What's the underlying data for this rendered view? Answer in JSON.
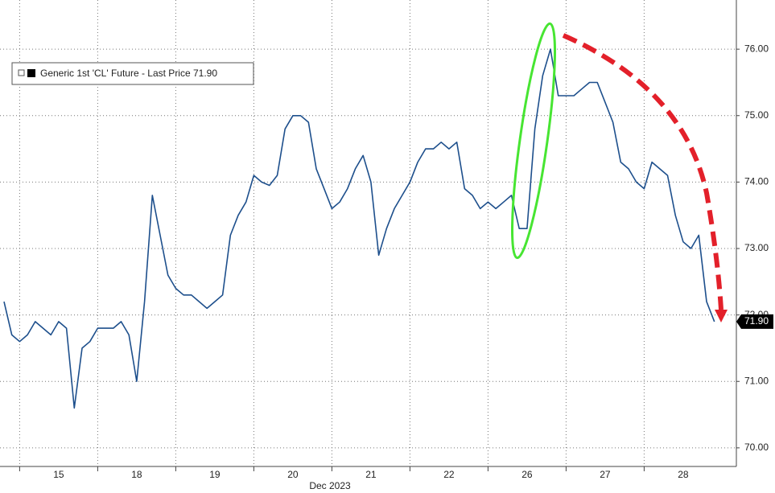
{
  "chart_data": {
    "type": "line",
    "xlabel": "Dec 2023",
    "categories": [
      null,
      null,
      null,
      null,
      null,
      null,
      null,
      "15",
      null,
      null,
      null,
      null,
      null,
      null,
      null,
      null,
      null,
      "18",
      null,
      null,
      null,
      null,
      null,
      null,
      null,
      null,
      null,
      "19",
      null,
      null,
      null,
      null,
      null,
      null,
      null,
      null,
      null,
      "20",
      null,
      null,
      null,
      null,
      null,
      null,
      null,
      null,
      null,
      "21",
      null,
      null,
      null,
      null,
      null,
      null,
      null,
      null,
      null,
      "22",
      null,
      null,
      null,
      null,
      null,
      null,
      null,
      null,
      null,
      "26",
      null,
      null,
      null,
      null,
      null,
      null,
      null,
      null,
      null,
      "27",
      null,
      null,
      null,
      null,
      null,
      null,
      null,
      null,
      null,
      "28",
      null,
      null,
      null,
      null
    ],
    "series": [
      {
        "name": "Generic 1st 'CL' Future - Last Price 71.90",
        "color": "#1d4f8c",
        "values": [
          72.2,
          71.7,
          71.6,
          71.7,
          71.9,
          71.8,
          71.7,
          71.9,
          71.8,
          70.6,
          71.5,
          71.6,
          71.8,
          71.8,
          71.8,
          71.9,
          71.7,
          71.0,
          72.2,
          73.8,
          73.2,
          72.6,
          72.4,
          72.3,
          72.3,
          72.2,
          72.1,
          72.2,
          72.3,
          73.2,
          73.5,
          73.7,
          74.1,
          74.0,
          73.95,
          74.1,
          74.8,
          75.0,
          75.0,
          74.9,
          74.2,
          73.9,
          73.6,
          73.7,
          73.9,
          74.2,
          74.4,
          74.0,
          72.9,
          73.3,
          73.6,
          73.8,
          74.0,
          74.3,
          74.5,
          74.5,
          74.6,
          74.5,
          74.6,
          73.9,
          73.8,
          73.6,
          73.7,
          73.6,
          73.7,
          73.8,
          73.3,
          73.3,
          74.8,
          75.6,
          76.0,
          75.3,
          75.3,
          75.3,
          75.4,
          75.5,
          75.5,
          75.2,
          74.9,
          74.3,
          74.2,
          74.0,
          73.9,
          74.3,
          74.2,
          74.1,
          73.5,
          73.1,
          73.0,
          73.2,
          72.2,
          71.9
        ]
      }
    ],
    "ylim": [
      69.72,
      76.74
    ],
    "yticks": [
      {
        "value": 70,
        "label": "70.00"
      },
      {
        "value": 71,
        "label": "71.00"
      },
      {
        "value": 72,
        "label": "72.00"
      },
      {
        "value": 73,
        "label": "73.00"
      },
      {
        "value": 74,
        "label": "74.00"
      },
      {
        "value": 75,
        "label": "75.00"
      },
      {
        "value": 76,
        "label": "76.00"
      }
    ],
    "grid": true,
    "annotations": [
      {
        "text": "71.90",
        "value": 71.9
      }
    ]
  }
}
